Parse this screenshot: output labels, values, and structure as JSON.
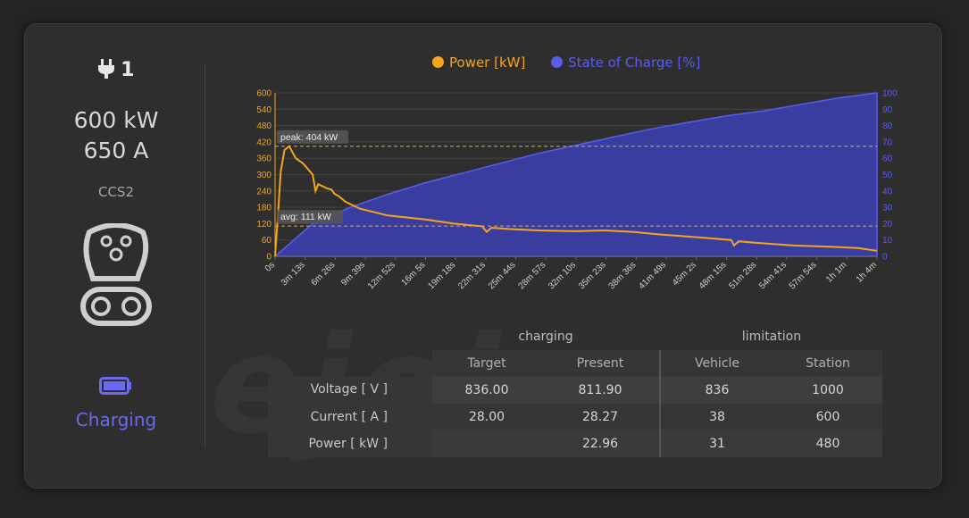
{
  "connector": {
    "number": "1",
    "power": "600 kW",
    "current": "650 A",
    "type": "CCS2",
    "status": "Charging"
  },
  "colors": {
    "power": "#f5a41c",
    "soc": "#5a5cf0",
    "soc_fill": "#3b3fb3",
    "status": "#6a6af0"
  },
  "legend": {
    "power": "Power [kW]",
    "soc": "State of Charge [%]"
  },
  "chart_data": {
    "type": "line",
    "series": [
      {
        "name": "Power [kW]",
        "axis": "left",
        "kind": "line",
        "x": [
          0,
          0.3,
          0.6,
          1.0,
          1.5,
          2.2,
          3.0,
          4.0,
          4.3,
          4.6,
          5.5,
          6.0,
          6.3,
          6.8,
          7.5,
          9.0,
          12.0,
          16.0,
          19.0,
          22.0,
          22.5,
          23,
          25.0,
          28.0,
          32.0,
          35.0,
          38.0,
          41.0,
          45.0,
          48.5,
          48.8,
          49.3,
          51.0,
          55.0,
          59.0,
          62.0,
          64.0
        ],
        "y": [
          0,
          150,
          310,
          390,
          404,
          360,
          340,
          300,
          240,
          265,
          250,
          245,
          230,
          220,
          200,
          175,
          150,
          135,
          120,
          110,
          90,
          105,
          100,
          95,
          92,
          95,
          90,
          80,
          70,
          60,
          40,
          55,
          50,
          40,
          35,
          30,
          20
        ]
      },
      {
        "name": "State of Charge [%]",
        "axis": "right",
        "kind": "area",
        "x": [
          0,
          4,
          8,
          12,
          16,
          20,
          24,
          28,
          32,
          36,
          40,
          44,
          48,
          52,
          56,
          60,
          64
        ],
        "y": [
          0,
          20,
          30,
          38,
          45,
          51,
          57,
          63,
          68,
          73,
          78,
          82,
          86,
          89,
          93,
          97,
          100
        ]
      }
    ],
    "x_ticks": [
      "0s",
      "3m 13s",
      "6m 26s",
      "9m 39s",
      "12m 52s",
      "16m 5s",
      "19m 18s",
      "22m 31s",
      "25m 44s",
      "28m 57s",
      "32m 10s",
      "35m 23s",
      "38m 36s",
      "41m 49s",
      "45m 2s",
      "48m 15s",
      "51m 28s",
      "54m 41s",
      "57m 54s",
      "1h 1m",
      "1h 4m"
    ],
    "x_range": [
      0,
      64
    ],
    "y_left_ticks": [
      "0",
      "60",
      "120",
      "180",
      "240",
      "300",
      "360",
      "420",
      "480",
      "540",
      "600"
    ],
    "y_left_range": [
      0,
      600
    ],
    "y_right_ticks": [
      "0",
      "10",
      "20",
      "30",
      "40",
      "50",
      "60",
      "70",
      "80",
      "90",
      "100"
    ],
    "y_right_range": [
      0,
      100
    ],
    "annotations": [
      {
        "label": "peak: 404 kW",
        "value": 404
      },
      {
        "label": "avg: 111 kW",
        "value": 111
      }
    ],
    "grid": true,
    "legend_position": "top-center"
  },
  "table": {
    "group_charging": "charging",
    "group_limitation": "limitation",
    "columns": [
      "Target",
      "Present",
      "Vehicle",
      "Station"
    ],
    "rows": [
      {
        "label": "Voltage [ V ]",
        "target": "836.00",
        "present": "811.90",
        "vehicle": "836",
        "station": "1000"
      },
      {
        "label": "Current [ A ]",
        "target": "28.00",
        "present": "28.27",
        "vehicle": "38",
        "station": "600"
      },
      {
        "label": "Power [ kW ]",
        "target": "",
        "present": "22.96",
        "vehicle": "31",
        "station": "480"
      }
    ]
  }
}
